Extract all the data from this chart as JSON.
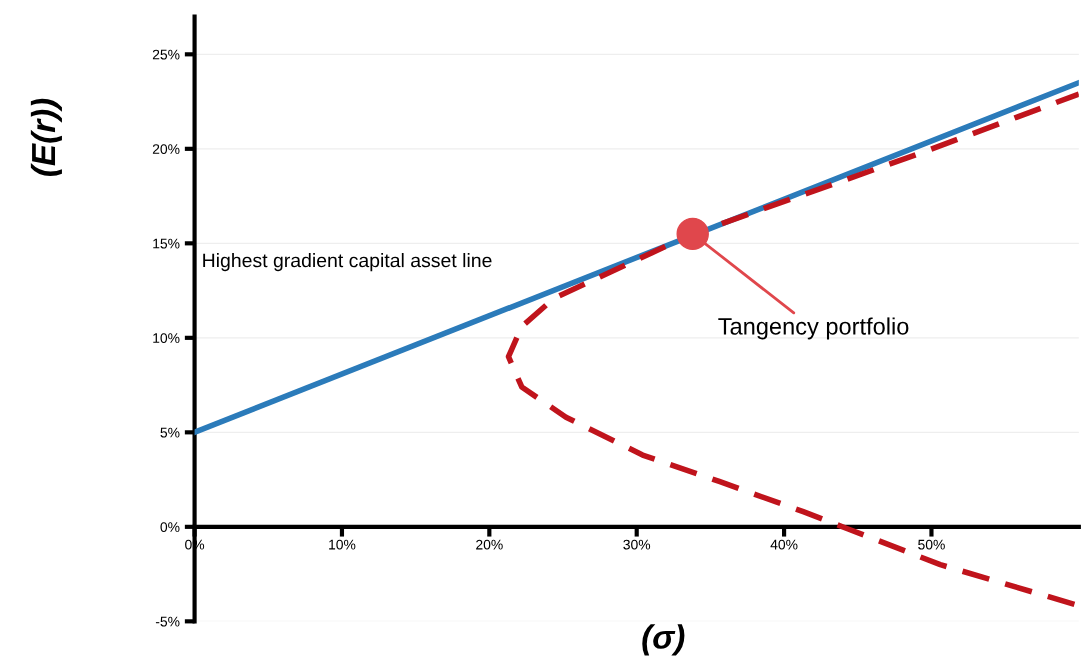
{
  "chart_data": {
    "type": "line",
    "xlabel": "(σ)",
    "ylabel": "(E(r))",
    "series": [
      {
        "type": "line",
        "color": "#2b7bba",
        "line_style": "solid",
        "x": [
          0,
          60
        ],
        "values": [
          5,
          23.5
        ]
      },
      {
        "type": "line",
        "color": "#c0141c",
        "line_style": "dashed",
        "x": [
          59.7,
          50.6,
          44.3,
          41.3,
          35.6,
          30.4,
          25.2,
          22.2,
          21.3,
          22.2,
          24.4,
          33.8,
          49.0,
          60
        ],
        "values": [
          -4.1,
          -2.0,
          -0.1,
          0.8,
          2.4,
          3.8,
          5.8,
          7.4,
          9.0,
          10.6,
          12.1,
          15.5,
          19.7,
          22.9
        ]
      },
      {
        "type": "scatter",
        "color": "#e0474c",
        "marker": "circle",
        "x": [
          33.8
        ],
        "values": [
          15.5
        ]
      }
    ],
    "xlim": [
      0,
      60
    ],
    "ylim": [
      -5,
      27
    ],
    "xticks": [
      {
        "value": 0,
        "label": "0%"
      },
      {
        "value": 10,
        "label": "10%"
      },
      {
        "value": 20,
        "label": "20%"
      },
      {
        "value": 30,
        "label": "30%"
      },
      {
        "value": 40,
        "label": "40%"
      },
      {
        "value": 50,
        "label": "50%"
      }
    ],
    "yticks": [
      {
        "value": -5,
        "label": "-5%"
      },
      {
        "value": 0,
        "label": "0%"
      },
      {
        "value": 5,
        "label": "5%"
      },
      {
        "value": 10,
        "label": "10%"
      },
      {
        "value": 15,
        "label": "15%"
      },
      {
        "value": 20,
        "label": "20%"
      },
      {
        "value": 25,
        "label": "25%"
      }
    ],
    "grid": "y",
    "annotations": [
      "Highest gradient capital asset line",
      {
        "text": "Tangency portfolio",
        "x": 33.8,
        "y": 15.5
      }
    ]
  }
}
